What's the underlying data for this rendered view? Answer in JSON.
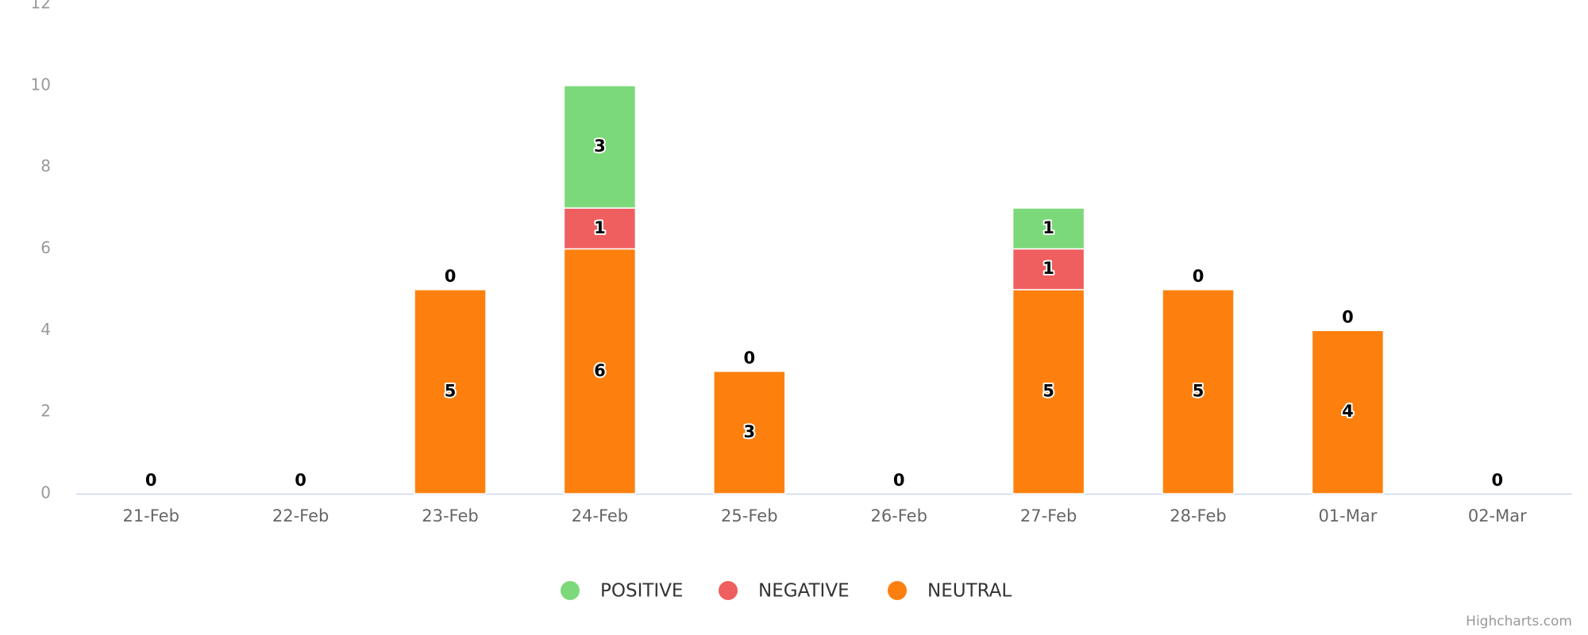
{
  "chart_data": {
    "type": "bar",
    "stacked": true,
    "categories": [
      "21-Feb",
      "22-Feb",
      "23-Feb",
      "24-Feb",
      "25-Feb",
      "26-Feb",
      "27-Feb",
      "28-Feb",
      "01-Mar",
      "02-Mar"
    ],
    "series": [
      {
        "name": "POSITIVE",
        "color": "#7cd97a",
        "values": [
          0,
          0,
          0,
          3,
          0,
          0,
          1,
          0,
          0,
          0
        ]
      },
      {
        "name": "NEGATIVE",
        "color": "#ef5f60",
        "values": [
          0,
          0,
          0,
          1,
          0,
          0,
          1,
          0,
          0,
          0
        ]
      },
      {
        "name": "NEUTRAL",
        "color": "#fd800f",
        "values": [
          0,
          0,
          5,
          6,
          3,
          0,
          5,
          5,
          4,
          0
        ]
      }
    ],
    "ylim": [
      0,
      12
    ],
    "yticks": [
      0,
      2,
      4,
      6,
      8,
      10,
      12
    ],
    "credits": "Highcharts.com"
  }
}
